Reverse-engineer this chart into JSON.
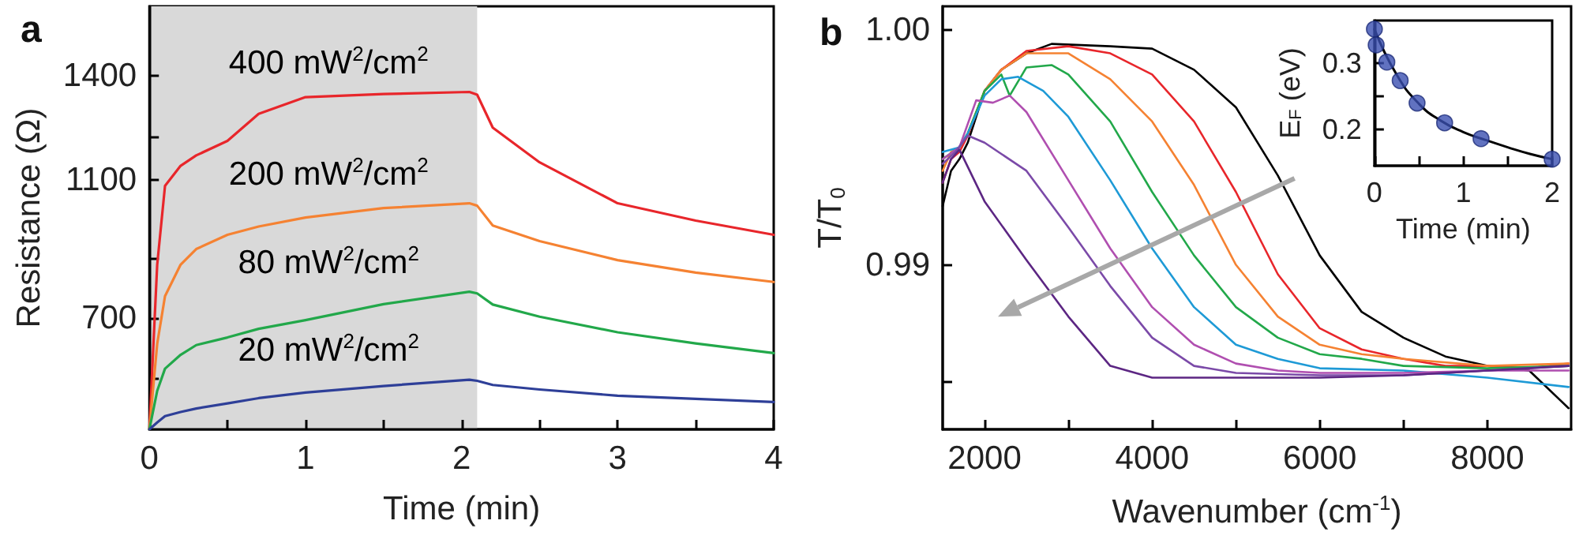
{
  "chart_data": [
    {
      "type": "line",
      "title": "a",
      "xlabel": "Time (min)",
      "ylabel": "Resistance (Ω)",
      "xlim": [
        0,
        4
      ],
      "ylim": [
        380,
        1600
      ],
      "xticks": [
        0,
        {
          "value": 0.5,
          "label": null
        },
        1,
        {
          "value": 1.5,
          "label": null
        },
        2,
        {
          "value": 2.5,
          "label": null
        },
        3,
        {
          "value": 3.5,
          "label": null
        },
        4
      ],
      "yticks": [
        {
          "value": 525,
          "label": null
        },
        700,
        {
          "value": 875,
          "label": null
        },
        1100,
        {
          "value": 1225,
          "label": null
        },
        1400
      ],
      "x": [
        0,
        0.05,
        0.1,
        0.2,
        0.3,
        0.5,
        0.7,
        1,
        1.5,
        2.05,
        2.1,
        2.2,
        2.5,
        3,
        3.5,
        4
      ],
      "series": [
        {
          "name": "400 mW$^{2}$/cm$^{2}$",
          "color": "#e8262b",
          "values": [
            380,
            855,
            1082,
            1140,
            1170,
            1212,
            1290,
            1338,
            1347,
            1353,
            1345,
            1250,
            1150,
            1032,
            982,
            941
          ]
        },
        {
          "name": "200 mW$^{2}$/cm$^{2}$",
          "color": "#f58232",
          "values": [
            380,
            627,
            764,
            855,
            900,
            941,
            965,
            991,
            1018,
            1032,
            1025,
            968,
            923,
            868,
            832,
            805
          ]
        },
        {
          "name": "80 mW$^{2}$/cm$^{2}$",
          "color": "#22a84a",
          "values": [
            380,
            491,
            555,
            595,
            623,
            645,
            670,
            695,
            741,
            777,
            772,
            740,
            705,
            660,
            628,
            600
          ]
        },
        {
          "name": "20 mW$^{2}$/cm$^{2}$",
          "color": "#2e3f98",
          "values": [
            380,
            400,
            418,
            430,
            440,
            455,
            470,
            486,
            505,
            523,
            520,
            508,
            495,
            477,
            468,
            459
          ]
        }
      ],
      "bands": [
        {
          "axis": "x",
          "from": 0,
          "to": 2.1,
          "color": "#d9d9d9"
        }
      ]
    },
    {
      "type": "line",
      "title": "b",
      "xlabel": "Wavenumber (cm$^{-1}$)",
      "ylabel": "T/T$_{0}$",
      "xlim": [
        1500,
        9000
      ],
      "ylim": [
        0.983,
        1.001
      ],
      "xticks": [
        2000,
        {
          "value": 3000,
          "label": null
        },
        4000,
        {
          "value": 5000,
          "label": null
        },
        6000,
        {
          "value": 7000,
          "label": null
        },
        8000
      ],
      "yticks": [
        {
          "value": 0.985,
          "label": null
        },
        0.99,
        {
          "value": 1,
          "label": "1.00"
        }
      ],
      "series": [
        {
          "color": "#000000",
          "x": [
            1500,
            1600,
            1700,
            1800,
            2000,
            2200,
            2500,
            2800,
            3500,
            4000,
            4500,
            5000,
            5500,
            6000,
            6500,
            7000,
            7500,
            8000,
            8500,
            8970
          ],
          "values": [
            0.9925,
            0.994,
            0.9945,
            0.9952,
            0.9974,
            0.9983,
            0.999,
            0.9994,
            0.9993,
            0.9992,
            0.9983,
            0.9967,
            0.9938,
            0.9904,
            0.988,
            0.9869,
            0.9861,
            0.9857,
            0.9855,
            0.9839
          ]
        },
        {
          "color": "#e8262b",
          "x": [
            1500,
            1600,
            1700,
            1800,
            2000,
            2200,
            2500,
            3000,
            3500,
            4000,
            4500,
            5000,
            5500,
            6000,
            6500,
            7000,
            7500,
            8000,
            8500,
            8970
          ],
          "values": [
            0.9935,
            0.9945,
            0.9948,
            0.9955,
            0.9974,
            0.9983,
            0.9991,
            0.9993,
            0.999,
            0.9981,
            0.9961,
            0.9931,
            0.9896,
            0.9873,
            0.9864,
            0.986,
            0.9857,
            0.9857,
            0.9856,
            0.9858
          ]
        },
        {
          "color": "#f58232",
          "x": [
            1500,
            1600,
            1700,
            1800,
            2000,
            2200,
            2500,
            3000,
            3500,
            4000,
            4500,
            5000,
            5500,
            6000,
            6500,
            7000,
            8000,
            8970
          ],
          "values": [
            0.994,
            0.9948,
            0.995,
            0.9956,
            0.9974,
            0.9983,
            0.999,
            0.999,
            0.9979,
            0.9961,
            0.9934,
            0.99,
            0.9878,
            0.9866,
            0.9862,
            0.986,
            0.9857,
            0.9858
          ]
        },
        {
          "color": "#22a84a",
          "x": [
            1500,
            1700,
            1800,
            2000,
            2200,
            2300,
            2500,
            2800,
            3000,
            3500,
            4000,
            4500,
            5000,
            5500,
            6000,
            6500,
            7000,
            8000,
            8970
          ],
          "values": [
            0.9945,
            0.995,
            0.9956,
            0.9974,
            0.9981,
            0.9972,
            0.9984,
            0.9985,
            0.9981,
            0.9961,
            0.9931,
            0.9904,
            0.9882,
            0.9869,
            0.9862,
            0.986,
            0.9857,
            0.9856,
            0.9857
          ]
        },
        {
          "color": "#1e9ad6",
          "x": [
            1500,
            1700,
            1800,
            2000,
            2200,
            2400,
            2700,
            3000,
            3500,
            4000,
            4500,
            5000,
            5500,
            6000,
            7000,
            8000,
            8970
          ],
          "values": [
            0.9948,
            0.995,
            0.9956,
            0.9972,
            0.9979,
            0.998,
            0.9974,
            0.9963,
            0.9936,
            0.9907,
            0.9882,
            0.9866,
            0.986,
            0.9856,
            0.9855,
            0.9852,
            0.9848
          ]
        },
        {
          "color": "#b04fb0",
          "x": [
            1500,
            1700,
            1900,
            2100,
            2300,
            2500,
            3000,
            3500,
            4000,
            4500,
            5000,
            5500,
            6000,
            7000,
            8000,
            8970
          ],
          "values": [
            0.9945,
            0.995,
            0.997,
            0.9969,
            0.9972,
            0.9965,
            0.9936,
            0.9907,
            0.9882,
            0.9866,
            0.9858,
            0.9855,
            0.9854,
            0.9854,
            0.9855,
            0.9855
          ]
        },
        {
          "color": "#7b4aa8",
          "x": [
            1500,
            1650,
            1800,
            2000,
            2500,
            3000,
            3500,
            4000,
            4500,
            5000,
            6000,
            7000,
            8000,
            8970
          ],
          "values": [
            0.9943,
            0.9948,
            0.9955,
            0.9952,
            0.994,
            0.9916,
            0.9891,
            0.9869,
            0.9857,
            0.9854,
            0.9853,
            0.9853,
            0.9855,
            0.9857
          ]
        },
        {
          "color": "#5c2683",
          "x": [
            1500,
            1600,
            1700,
            2000,
            2500,
            3000,
            3500,
            4000,
            5000,
            6000,
            7000,
            8000,
            8970
          ],
          "values": [
            0.9935,
            0.9945,
            0.9949,
            0.9927,
            0.9902,
            0.9878,
            0.9857,
            0.9852,
            0.9852,
            0.9852,
            0.9853,
            0.9855,
            0.9857
          ]
        }
      ]
    },
    {
      "type": "scatter",
      "xlabel": "Time (min)",
      "ylabel": "E$_{F}$ (eV)",
      "xlim": [
        0,
        2
      ],
      "ylim": [
        0.145,
        0.365
      ],
      "xticks": [
        0,
        {
          "value": 0.5,
          "label": null
        },
        1,
        {
          "value": 1.5,
          "label": null
        },
        2
      ],
      "yticks": [
        0.2,
        {
          "value": 0.25,
          "label": null
        },
        0.3
      ],
      "series": [
        {
          "type": "line",
          "marker": "none",
          "color": "#000000",
          "x": [
            0,
            0.25,
            0.5,
            0.75,
            1,
            1.25,
            1.5,
            1.75,
            2
          ],
          "values": [
            0.352,
            0.283,
            0.239,
            0.213,
            0.196,
            0.184,
            0.173,
            0.163,
            0.155
          ]
        },
        {
          "type": "scatter",
          "marker": "circle",
          "color": "#3a4fb0",
          "x": [
            0,
            0.02,
            0.14,
            0.29,
            0.48,
            0.79,
            1.2,
            2
          ],
          "values": [
            0.352,
            0.328,
            0.302,
            0.274,
            0.24,
            0.21,
            0.186,
            0.155
          ]
        }
      ]
    }
  ]
}
